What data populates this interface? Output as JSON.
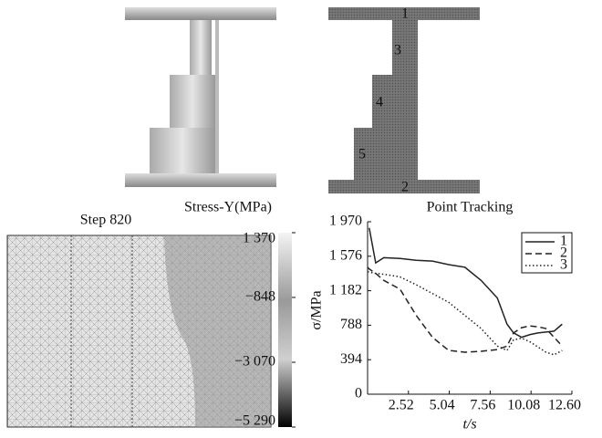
{
  "figure": {
    "part_labels": [
      "1",
      "2",
      "3",
      "4",
      "5"
    ]
  },
  "contour": {
    "step": "Step  820",
    "title": "Stress-Y(MPa)",
    "colorbar_ticks": [
      {
        "value": 1370,
        "label": "1 370"
      },
      {
        "value": -848,
        "label": "−848"
      },
      {
        "value": -3070,
        "label": "−3 070"
      },
      {
        "value": -5290,
        "label": "−5 290"
      }
    ]
  },
  "chart_data": {
    "type": "line",
    "title": "Point Tracking",
    "x_label": "t/s",
    "y_label": "σ/MPa",
    "x": [
      0,
      0.1,
      0.5,
      1,
      2,
      3,
      4,
      5,
      6,
      7,
      8,
      8.6,
      9,
      9.5,
      10,
      10.5,
      11,
      11.5,
      12
    ],
    "series": [
      {
        "name": "1",
        "color": "#222222",
        "line_style": "solid",
        "values": [
          null,
          1900,
          1500,
          1560,
          1550,
          1530,
          1520,
          1480,
          1450,
          1300,
          1100,
          800,
          700,
          650,
          680,
          700,
          710,
          720,
          800
        ]
      },
      {
        "name": "2",
        "color": "#222222",
        "line_style": "dashed",
        "values": [
          1450,
          1430,
          1380,
          1300,
          1200,
          900,
          650,
          500,
          480,
          490,
          510,
          550,
          700,
          760,
          780,
          770,
          750,
          650,
          550
        ]
      },
      {
        "name": "3",
        "color": "#222222",
        "line_style": "dotted",
        "values": [
          1400,
          1395,
          1380,
          1370,
          1340,
          1250,
          1150,
          1050,
          900,
          750,
          550,
          500,
          620,
          640,
          600,
          540,
          480,
          450,
          500
        ]
      }
    ],
    "xlim": [
      0,
      12.6
    ],
    "ylim": [
      0,
      1970
    ],
    "xticks": [
      2.52,
      5.04,
      7.56,
      10.08,
      {
        "value": 12.6,
        "label": "12.60"
      }
    ],
    "yticks": [
      0,
      394,
      788,
      {
        "value": 1182,
        "label": "1 182"
      },
      {
        "value": 1576,
        "label": "1 576"
      },
      {
        "value": 1970,
        "label": "1 970"
      }
    ],
    "legend": "upper right"
  }
}
